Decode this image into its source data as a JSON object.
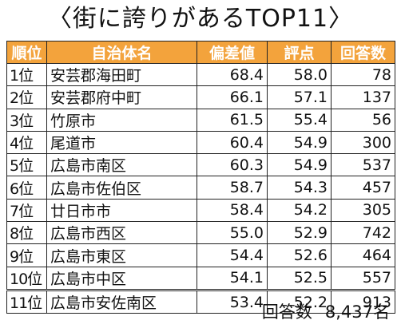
{
  "title": "〈街に誇りがあるTOP11〉",
  "headers": [
    "順位",
    "自治体名",
    "偏差値",
    "評点",
    "回答数"
  ],
  "rows": [
    {
      "rank": "1位",
      "name": "安芸郡海田町",
      "deviation": "68.4",
      "score": "58.0",
      "responses": "78"
    },
    {
      "rank": "2位",
      "name": "安芸郡府中町",
      "deviation": "66.1",
      "score": "57.1",
      "responses": "137"
    },
    {
      "rank": "3位",
      "name": "竹原市",
      "deviation": "61.5",
      "score": "55.4",
      "responses": "56"
    },
    {
      "rank": "4位",
      "name": "尾道市",
      "deviation": "60.4",
      "score": "54.9",
      "responses": "300"
    },
    {
      "rank": "5位",
      "name": "広島市南区",
      "deviation": "60.3",
      "score": "54.9",
      "responses": "537"
    },
    {
      "rank": "6位",
      "name": "広島市佐伯区",
      "deviation": "58.7",
      "score": "54.3",
      "responses": "457"
    },
    {
      "rank": "7位",
      "name": "廿日市市",
      "deviation": "58.4",
      "score": "54.2",
      "responses": "305"
    },
    {
      "rank": "8位",
      "name": "広島市西区",
      "deviation": "55.0",
      "score": "52.9",
      "responses": "742"
    },
    {
      "rank": "9位",
      "name": "広島市東区",
      "deviation": "54.4",
      "score": "52.6",
      "responses": "464"
    },
    {
      "rank": "10位",
      "name": "広島市中区",
      "deviation": "54.1",
      "score": "52.5",
      "responses": "557"
    },
    {
      "rank": "11位",
      "name": "広島市安佐南区",
      "deviation": "53.4",
      "score": "52.2",
      "responses": "913"
    }
  ],
  "footer": {
    "label": "回答数",
    "value": "8,437名"
  },
  "colors": {
    "header_bg": "#f3a33c",
    "header_text": "#ffffff"
  }
}
